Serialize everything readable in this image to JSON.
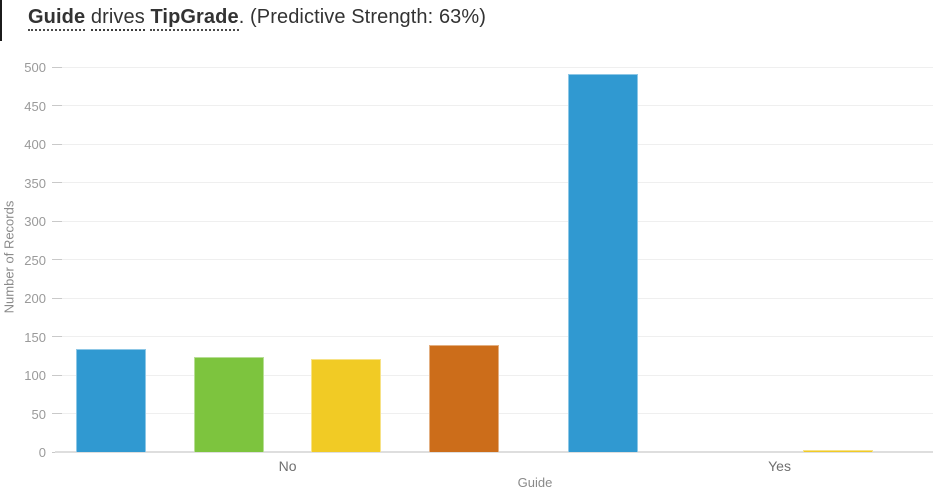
{
  "title": {
    "full_text": "Guide drives TipGrade. (Predictive Strength: 63%)",
    "parts": [
      {
        "name": "title-field-guide",
        "text": "Guide",
        "bold": true,
        "underline": "dotted",
        "interactable": true
      },
      {
        "name": "title-spacer-1",
        "text": " ",
        "bold": false,
        "underline": "none",
        "interactable": false
      },
      {
        "name": "title-verb-drives",
        "text": "drives",
        "bold": false,
        "underline": "dashed",
        "interactable": true
      },
      {
        "name": "title-spacer-2",
        "text": " ",
        "bold": false,
        "underline": "none",
        "interactable": false
      },
      {
        "name": "title-field-tipgrade",
        "text": "TipGrade",
        "bold": true,
        "underline": "dotted",
        "interactable": true
      },
      {
        "name": "title-predictive-strength",
        "text": ". (Predictive Strength: 63%)",
        "bold": false,
        "underline": "none",
        "interactable": false
      }
    ]
  },
  "chart_data": {
    "type": "bar",
    "title": "Guide drives TipGrade. (Predictive Strength: 63%)",
    "xlabel": "Guide",
    "ylabel": "Number of Records",
    "categories": [
      "No",
      "Yes"
    ],
    "series": [
      {
        "name": "blue",
        "color": "#3099d1",
        "values": [
          134,
          491
        ]
      },
      {
        "name": "green",
        "color": "#7dc43e",
        "values": [
          123,
          0
        ]
      },
      {
        "name": "yellow",
        "color": "#f1cb25",
        "values": [
          121,
          2
        ]
      },
      {
        "name": "orange",
        "color": "#cc6d1a",
        "values": [
          139,
          0
        ]
      }
    ],
    "ylim": [
      0,
      500
    ],
    "yticks": [
      0,
      50,
      100,
      150,
      200,
      250,
      300,
      350,
      400,
      450,
      500
    ],
    "grid": true,
    "legend": false,
    "predictive_strength": "63%"
  },
  "theme": {
    "grid_color": "#efefef",
    "axis_line_color": "#dedede",
    "tick_color": "#c9c9c9",
    "tick_label_color": "#9a9a9a",
    "axis_title_color": "#8a8a8a",
    "category_label_color": "#6f6f6f",
    "title_color": "#333333",
    "edge_mark_color": "#1b1b1b"
  }
}
